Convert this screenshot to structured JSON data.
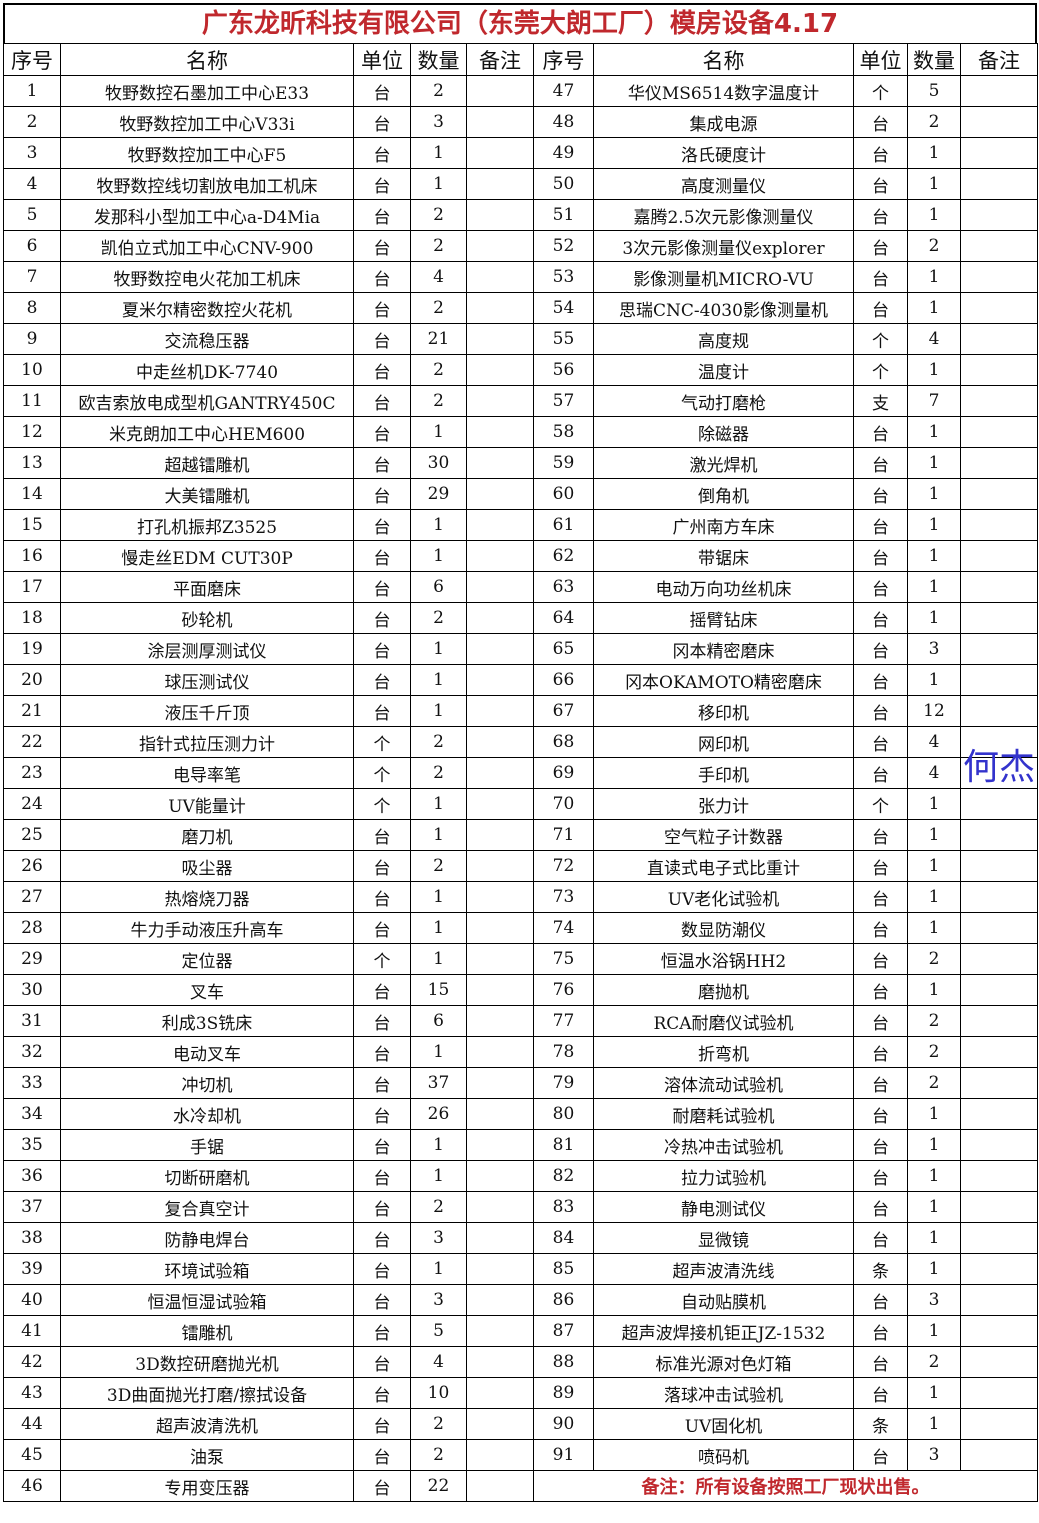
{
  "title": "广东龙昕科技有限公司（东莞大朗工厂）模房设备4.17",
  "headers": [
    "序号",
    "名称",
    "单位",
    "数量",
    "备注",
    "序号",
    "名称",
    "单位",
    "数量",
    "备注"
  ],
  "watermark": "何杰",
  "footer_note": "备注：所有设备按照工厂现状出售。",
  "colors": {
    "title": "#c0282d",
    "note": "#c0282d",
    "watermark": "#3333cc"
  },
  "left_rows": [
    [
      "1",
      "牧野数控石墨加工中心E33",
      "台",
      "2"
    ],
    [
      "2",
      "牧野数控加工中心V33i",
      "台",
      "3"
    ],
    [
      "3",
      "牧野数控加工中心F5",
      "台",
      "1"
    ],
    [
      "4",
      "牧野数控线切割放电加工机床",
      "台",
      "1"
    ],
    [
      "5",
      "发那科小型加工中心a-D4Mia",
      "台",
      "2"
    ],
    [
      "6",
      "凯伯立式加工中心CNV-900",
      "台",
      "2"
    ],
    [
      "7",
      "牧野数控电火花加工机床",
      "台",
      "4"
    ],
    [
      "8",
      "夏米尔精密数控火花机",
      "台",
      "2"
    ],
    [
      "9",
      "交流稳压器",
      "台",
      "21"
    ],
    [
      "10",
      "中走丝机DK-7740",
      "台",
      "2"
    ],
    [
      "11",
      "欧吉索放电成型机GANTRY450C",
      "台",
      "2"
    ],
    [
      "12",
      "米克朗加工中心HEM600",
      "台",
      "1"
    ],
    [
      "13",
      "超越镭雕机",
      "台",
      "30"
    ],
    [
      "14",
      "大美镭雕机",
      "台",
      "29"
    ],
    [
      "15",
      "打孔机振邦Z3525",
      "台",
      "1"
    ],
    [
      "16",
      "慢走丝EDM CUT30P",
      "台",
      "1"
    ],
    [
      "17",
      "平面磨床",
      "台",
      "6"
    ],
    [
      "18",
      "砂轮机",
      "台",
      "2"
    ],
    [
      "19",
      "涂层测厚测试仪",
      "台",
      "1"
    ],
    [
      "20",
      "球压测试仪",
      "台",
      "1"
    ],
    [
      "21",
      "液压千斤顶",
      "台",
      "1"
    ],
    [
      "22",
      "指针式拉压测力计",
      "个",
      "2"
    ],
    [
      "23",
      "电导率笔",
      "个",
      "2"
    ],
    [
      "24",
      "UV能量计",
      "个",
      "1"
    ],
    [
      "25",
      "磨刀机",
      "台",
      "1"
    ],
    [
      "26",
      "吸尘器",
      "台",
      "2"
    ],
    [
      "27",
      "热熔烧刀器",
      "台",
      "1"
    ],
    [
      "28",
      "牛力手动液压升高车",
      "台",
      "1"
    ],
    [
      "29",
      "定位器",
      "个",
      "1"
    ],
    [
      "30",
      "叉车",
      "台",
      "15"
    ],
    [
      "31",
      "利成3S铣床",
      "台",
      "6"
    ],
    [
      "32",
      "电动叉车",
      "台",
      "1"
    ],
    [
      "33",
      "冲切机",
      "台",
      "37"
    ],
    [
      "34",
      "水冷却机",
      "台",
      "26"
    ],
    [
      "35",
      "手锯",
      "台",
      "1"
    ],
    [
      "36",
      "切断研磨机",
      "台",
      "1"
    ],
    [
      "37",
      "复合真空计",
      "台",
      "2"
    ],
    [
      "38",
      "防静电焊台",
      "台",
      "3"
    ],
    [
      "39",
      "环境试验箱",
      "台",
      "1"
    ],
    [
      "40",
      "恒温恒湿试验箱",
      "台",
      "3"
    ],
    [
      "41",
      "镭雕机",
      "台",
      "5"
    ],
    [
      "42",
      "3D数控研磨抛光机",
      "台",
      "4"
    ],
    [
      "43",
      "3D曲面抛光打磨/擦拭设备",
      "台",
      "10"
    ],
    [
      "44",
      "超声波清洗机",
      "台",
      "2"
    ],
    [
      "45",
      "油泵",
      "台",
      "2"
    ],
    [
      "46",
      "专用变压器",
      "台",
      "22"
    ]
  ],
  "right_rows": [
    [
      "47",
      "华仪MS6514数字温度计",
      "个",
      "5"
    ],
    [
      "48",
      "集成电源",
      "台",
      "2"
    ],
    [
      "49",
      "洛氏硬度计",
      "台",
      "1"
    ],
    [
      "50",
      "高度测量仪",
      "台",
      "1"
    ],
    [
      "51",
      "嘉腾2.5次元影像测量仪",
      "台",
      "1"
    ],
    [
      "52",
      "3次元影像测量仪explorer",
      "台",
      "2"
    ],
    [
      "53",
      "影像测量机MICRO-VU",
      "台",
      "1"
    ],
    [
      "54",
      "思瑞CNC-4030影像测量机",
      "台",
      "1"
    ],
    [
      "55",
      "高度规",
      "个",
      "4"
    ],
    [
      "56",
      "温度计",
      "个",
      "1"
    ],
    [
      "57",
      "气动打磨枪",
      "支",
      "7"
    ],
    [
      "58",
      "除磁器",
      "台",
      "1"
    ],
    [
      "59",
      "激光焊机",
      "台",
      "1"
    ],
    [
      "60",
      "倒角机",
      "台",
      "1"
    ],
    [
      "61",
      "广州南方车床",
      "台",
      "1"
    ],
    [
      "62",
      "带锯床",
      "台",
      "1"
    ],
    [
      "63",
      "电动万向功丝机床",
      "台",
      "1"
    ],
    [
      "64",
      "摇臂钻床",
      "台",
      "1"
    ],
    [
      "65",
      "冈本精密磨床",
      "台",
      "3"
    ],
    [
      "66",
      "冈本OKAMOTO精密磨床",
      "台",
      "1"
    ],
    [
      "67",
      "移印机",
      "台",
      "12"
    ],
    [
      "68",
      "网印机",
      "台",
      "4"
    ],
    [
      "69",
      "手印机",
      "台",
      "4"
    ],
    [
      "70",
      "张力计",
      "个",
      "1"
    ],
    [
      "71",
      "空气粒子计数器",
      "台",
      "1"
    ],
    [
      "72",
      "直读式电子式比重计",
      "台",
      "1"
    ],
    [
      "73",
      "UV老化试验机",
      "台",
      "1"
    ],
    [
      "74",
      "数显防潮仪",
      "台",
      "1"
    ],
    [
      "75",
      "恒温水浴锅HH2",
      "台",
      "2"
    ],
    [
      "76",
      "磨抛机",
      "台",
      "1"
    ],
    [
      "77",
      "RCA耐磨仪试验机",
      "台",
      "2"
    ],
    [
      "78",
      "折弯机",
      "台",
      "2"
    ],
    [
      "79",
      "溶体流动试验机",
      "台",
      "2"
    ],
    [
      "80",
      "耐磨耗试验机",
      "台",
      "1"
    ],
    [
      "81",
      "冷热冲击试验机",
      "台",
      "1"
    ],
    [
      "82",
      "拉力试验机",
      "台",
      "1"
    ],
    [
      "83",
      "静电测试仪",
      "台",
      "1"
    ],
    [
      "84",
      "显微镜",
      "台",
      "1"
    ],
    [
      "85",
      "超声波清洗线",
      "条",
      "1"
    ],
    [
      "86",
      "自动贴膜机",
      "台",
      "3"
    ],
    [
      "87",
      "超声波焊接机钜正JZ-1532",
      "台",
      "1"
    ],
    [
      "88",
      "标准光源对色灯箱",
      "台",
      "2"
    ],
    [
      "89",
      "落球冲击试验机",
      "台",
      "1"
    ],
    [
      "90",
      "UV固化机",
      "条",
      "1"
    ],
    [
      "91",
      "喷码机",
      "台",
      "3"
    ]
  ]
}
